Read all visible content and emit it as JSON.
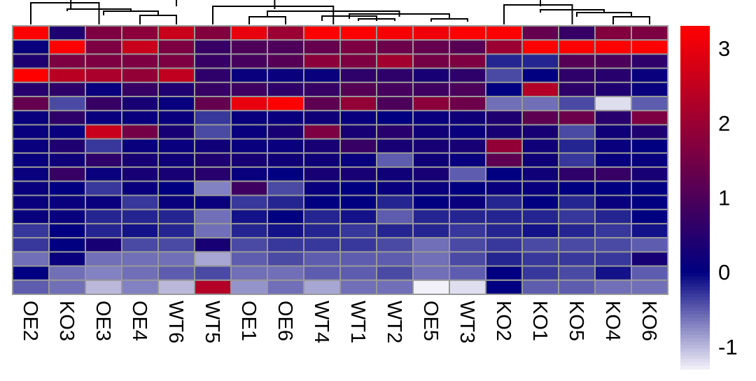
{
  "chart_data": {
    "type": "heatmap",
    "title": "",
    "xlabel": "",
    "ylabel": "",
    "columns": [
      "OE2",
      "KO3",
      "OE3",
      "OE4",
      "WT6",
      "WT5",
      "OE1",
      "OE6",
      "WT4",
      "WT1",
      "WT2",
      "OE5",
      "WT3",
      "KO2",
      "KO1",
      "KO5",
      "KO4",
      "KO6"
    ],
    "row_count": 19,
    "values": [
      [
        3.3,
        0.4,
        1.6,
        1.8,
        2.6,
        1.7,
        3.0,
        2.0,
        3.3,
        3.3,
        3.2,
        3.1,
        3.3,
        3.3,
        1.3,
        0.7,
        1.7,
        1.6
      ],
      [
        0.1,
        3.3,
        1.6,
        2.6,
        1.6,
        0.7,
        1.0,
        1.0,
        1.3,
        1.6,
        1.4,
        1.3,
        1.1,
        2.0,
        3.3,
        3.3,
        3.3,
        3.3
      ],
      [
        0.4,
        1.6,
        1.6,
        1.6,
        1.6,
        0.7,
        0.9,
        1.1,
        1.8,
        1.6,
        2.1,
        1.5,
        1.6,
        -0.2,
        -0.2,
        1.1,
        1.0,
        0.6
      ],
      [
        3.3,
        2.4,
        2.2,
        1.9,
        2.5,
        0.6,
        0.1,
        0.1,
        0.1,
        0.6,
        0.6,
        0.3,
        0.6,
        -0.4,
        0.0,
        0.6,
        0.5,
        0.1
      ],
      [
        0.5,
        0.6,
        0.1,
        0.7,
        0.4,
        0.7,
        0.8,
        0.6,
        0.7,
        1.1,
        0.9,
        0.8,
        1.0,
        0.0,
        2.3,
        0.6,
        0.4,
        0.1
      ],
      [
        1.3,
        -0.4,
        0.7,
        0.3,
        0.1,
        1.3,
        3.0,
        3.3,
        1.2,
        1.9,
        1.0,
        1.8,
        1.4,
        -0.6,
        -0.6,
        -0.4,
        -1.2,
        -0.5
      ],
      [
        0.1,
        0.6,
        0.1,
        0.1,
        0.1,
        -0.3,
        0.1,
        0.1,
        0.2,
        0.1,
        0.0,
        0.1,
        0.2,
        0.4,
        1.2,
        1.4,
        0.5,
        1.6
      ],
      [
        0.1,
        0.1,
        2.6,
        1.5,
        0.3,
        -0.4,
        0.1,
        0.3,
        1.6,
        0.3,
        0.5,
        0.2,
        0.1,
        0.3,
        0.3,
        -0.4,
        0.2,
        0.4
      ],
      [
        0.1,
        0.4,
        -0.3,
        0.1,
        0.1,
        0.2,
        0.1,
        0.1,
        0.3,
        0.7,
        0.3,
        0.3,
        0.3,
        1.9,
        0.2,
        -0.2,
        0.1,
        0.0
      ],
      [
        0.1,
        0.2,
        0.6,
        0.3,
        0.2,
        0.4,
        0.3,
        0.2,
        0.2,
        0.1,
        -0.5,
        0.2,
        0.1,
        1.2,
        0.2,
        -0.3,
        0.1,
        0.1
      ],
      [
        0.1,
        0.7,
        0.1,
        0.3,
        0.3,
        0.5,
        0.1,
        0.0,
        0.3,
        0.3,
        0.2,
        0.3,
        -0.5,
        0.0,
        0.2,
        0.6,
        0.7,
        0.3
      ],
      [
        0.1,
        0.0,
        -0.3,
        0.1,
        0.0,
        -0.7,
        0.8,
        -0.4,
        0.1,
        0.0,
        0.1,
        0.1,
        0.0,
        0.1,
        0.1,
        0.0,
        0.0,
        0.0
      ],
      [
        0.1,
        0.1,
        0.1,
        -0.3,
        0.1,
        0.1,
        -0.3,
        -0.2,
        0.0,
        0.0,
        -0.2,
        0.0,
        0.1,
        -0.2,
        0.0,
        -0.2,
        0.1,
        0.0
      ],
      [
        0.1,
        0.1,
        -0.2,
        -0.2,
        -0.2,
        -0.6,
        -0.1,
        0.0,
        -0.2,
        -0.1,
        -0.5,
        -0.2,
        -0.2,
        -0.2,
        -0.2,
        -0.3,
        -0.2,
        0.0
      ],
      [
        -0.3,
        0.0,
        -0.2,
        -0.1,
        -0.2,
        -0.6,
        -0.2,
        -0.1,
        -0.2,
        -0.3,
        -0.2,
        -0.2,
        -0.3,
        -0.2,
        -0.1,
        -0.2,
        -0.3,
        -0.1
      ],
      [
        -0.3,
        0.0,
        0.3,
        -0.4,
        -0.4,
        0.3,
        -0.4,
        -0.3,
        -0.3,
        -0.3,
        -0.4,
        -0.6,
        -0.4,
        -0.3,
        -0.4,
        -0.4,
        -0.4,
        -0.5
      ],
      [
        -0.6,
        0.1,
        -0.6,
        -0.6,
        -0.6,
        -0.9,
        -0.5,
        -0.4,
        -0.5,
        -0.5,
        -0.5,
        -0.6,
        -0.4,
        -0.2,
        -0.3,
        -0.3,
        -0.3,
        0.3
      ],
      [
        0.0,
        -0.6,
        -0.7,
        -0.6,
        -0.5,
        -0.4,
        -0.6,
        -0.6,
        -0.5,
        -0.5,
        -0.4,
        -0.6,
        -0.5,
        0.0,
        -0.3,
        -0.4,
        -0.1,
        -0.5
      ],
      [
        -0.5,
        -0.6,
        -1.0,
        -0.7,
        -1.0,
        2.3,
        -0.8,
        -0.6,
        -0.9,
        -0.6,
        -0.6,
        -1.3,
        -1.2,
        0.0,
        -0.5,
        -0.5,
        -0.6,
        -0.6
      ]
    ],
    "colorbar": {
      "min": -1.3,
      "max": 3.3,
      "ticks": [
        3,
        2,
        1,
        0,
        -1
      ],
      "tick_labels": [
        "3",
        "2",
        "1",
        "0",
        "-1"
      ],
      "colors": [
        "#f2f0f8",
        "#000080",
        "#ff0000"
      ]
    },
    "grid_color": "#999999",
    "dendrogram_color": "#000000"
  }
}
